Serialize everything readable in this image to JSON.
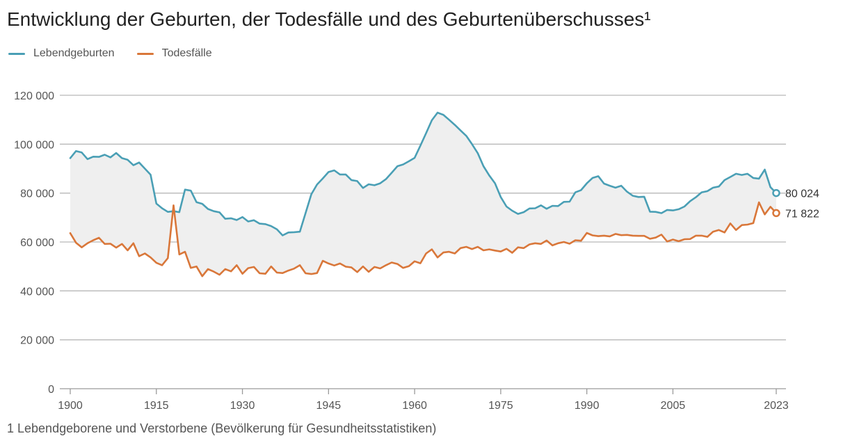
{
  "chart_data": {
    "type": "line",
    "title": "Entwicklung der Geburten, der Todesfälle und des Geburtenüberschusses¹",
    "legend_position": "top-left",
    "grid": true,
    "ylim": [
      0,
      120000
    ],
    "y_ticks": [
      0,
      20000,
      40000,
      60000,
      80000,
      100000,
      120000
    ],
    "y_tick_labels": [
      "0",
      "20 000",
      "40 000",
      "60 000",
      "80 000",
      "100 000",
      "120 000"
    ],
    "xlim": [
      1900,
      2023
    ],
    "x_ticks": [
      1900,
      1915,
      1930,
      1945,
      1960,
      1975,
      1990,
      2005,
      2023
    ],
    "x_tick_labels": [
      "1900",
      "1915",
      "1930",
      "1945",
      "1960",
      "1975",
      "1990",
      "2005",
      "2023"
    ],
    "area_between_series": true,
    "end_labels": [
      "80 024",
      "71 822"
    ],
    "x": [
      1900,
      1901,
      1902,
      1903,
      1904,
      1905,
      1906,
      1907,
      1908,
      1909,
      1910,
      1911,
      1912,
      1913,
      1914,
      1915,
      1916,
      1917,
      1918,
      1919,
      1920,
      1921,
      1922,
      1923,
      1924,
      1925,
      1926,
      1927,
      1928,
      1929,
      1930,
      1931,
      1932,
      1933,
      1934,
      1935,
      1936,
      1937,
      1938,
      1939,
      1940,
      1941,
      1942,
      1943,
      1944,
      1945,
      1946,
      1947,
      1948,
      1949,
      1950,
      1951,
      1952,
      1953,
      1954,
      1955,
      1956,
      1957,
      1958,
      1959,
      1960,
      1961,
      1962,
      1963,
      1964,
      1965,
      1966,
      1967,
      1968,
      1969,
      1970,
      1971,
      1972,
      1973,
      1974,
      1975,
      1976,
      1977,
      1978,
      1979,
      1980,
      1981,
      1982,
      1983,
      1984,
      1985,
      1986,
      1987,
      1988,
      1989,
      1990,
      1991,
      1992,
      1993,
      1994,
      1995,
      1996,
      1997,
      1998,
      1999,
      2000,
      2001,
      2002,
      2003,
      2004,
      2005,
      2006,
      2007,
      2008,
      2009,
      2010,
      2011,
      2012,
      2013,
      2014,
      2015,
      2016,
      2017,
      2018,
      2019,
      2020,
      2021,
      2022,
      2023
    ],
    "series": [
      {
        "name": "Lebendgeburten",
        "color": "#4a9fb5",
        "values": [
          94300,
          97200,
          96600,
          93900,
          94900,
          94800,
          95700,
          94600,
          96400,
          94300,
          93600,
          91400,
          92500,
          90000,
          87500,
          75700,
          73800,
          72300,
          72600,
          72200,
          81400,
          81000,
          76300,
          75600,
          73500,
          72600,
          72100,
          69500,
          69700,
          69000,
          70200,
          68400,
          68900,
          67500,
          67300,
          66500,
          65200,
          62700,
          63900,
          64000,
          64200,
          71800,
          79500,
          83500,
          86000,
          88600,
          89300,
          87600,
          87600,
          85300,
          84900,
          82100,
          83600,
          83200,
          84000,
          85700,
          88300,
          91000,
          91700,
          93000,
          94400,
          99400,
          104500,
          109800,
          112900,
          112000,
          110000,
          107900,
          105600,
          103400,
          100000,
          96300,
          91000,
          87200,
          84000,
          78400,
          74500,
          72800,
          71500,
          72200,
          73700,
          73800,
          75000,
          73600,
          74800,
          74700,
          76400,
          76500,
          80300,
          81200,
          84000,
          86200,
          86900,
          83900,
          83000,
          82200,
          83000,
          80600,
          78900,
          78400,
          78500,
          72400,
          72300,
          71800,
          73100,
          72900,
          73400,
          74500,
          76700,
          78300,
          80300,
          80800,
          82200,
          82700,
          85300,
          86600,
          87900,
          87400,
          87900,
          86200,
          85900,
          89600,
          82400,
          80024
        ]
      },
      {
        "name": "Todesfälle",
        "color": "#d9773a",
        "values": [
          63600,
          59700,
          57800,
          59500,
          60700,
          61700,
          59200,
          59300,
          57700,
          59200,
          56600,
          59500,
          54200,
          55300,
          53700,
          51500,
          50500,
          53400,
          75000,
          54900,
          56000,
          49400,
          50000,
          46000,
          48900,
          47900,
          46600,
          48900,
          48000,
          50500,
          47000,
          49300,
          49800,
          47200,
          47000,
          50000,
          47500,
          47300,
          48300,
          49100,
          50500,
          47200,
          46900,
          47300,
          52300,
          51200,
          50400,
          51200,
          49900,
          49600,
          47700,
          50000,
          47800,
          49800,
          49200,
          50500,
          51600,
          51000,
          49400,
          50100,
          52100,
          51300,
          55300,
          57000,
          53700,
          55700,
          56000,
          55300,
          57500,
          58000,
          57100,
          58000,
          56600,
          57000,
          56500,
          56100,
          57200,
          55600,
          57800,
          57500,
          59000,
          59500,
          59200,
          60600,
          58600,
          59500,
          60000,
          59300,
          60700,
          60500,
          63700,
          62700,
          62400,
          62600,
          62300,
          63300,
          62800,
          62900,
          62600,
          62500,
          62500,
          61300,
          61800,
          63000,
          60200,
          61000,
          60300,
          61100,
          61200,
          62600,
          62600,
          62100,
          64200,
          64900,
          63900,
          67600,
          64900,
          66900,
          67100,
          67700,
          76200,
          71300,
          74400,
          71822
        ]
      }
    ]
  },
  "footnote": "1 Lebendgeborene und Verstorbene (Bevölkerung für Gesundheitsstatistiken)"
}
